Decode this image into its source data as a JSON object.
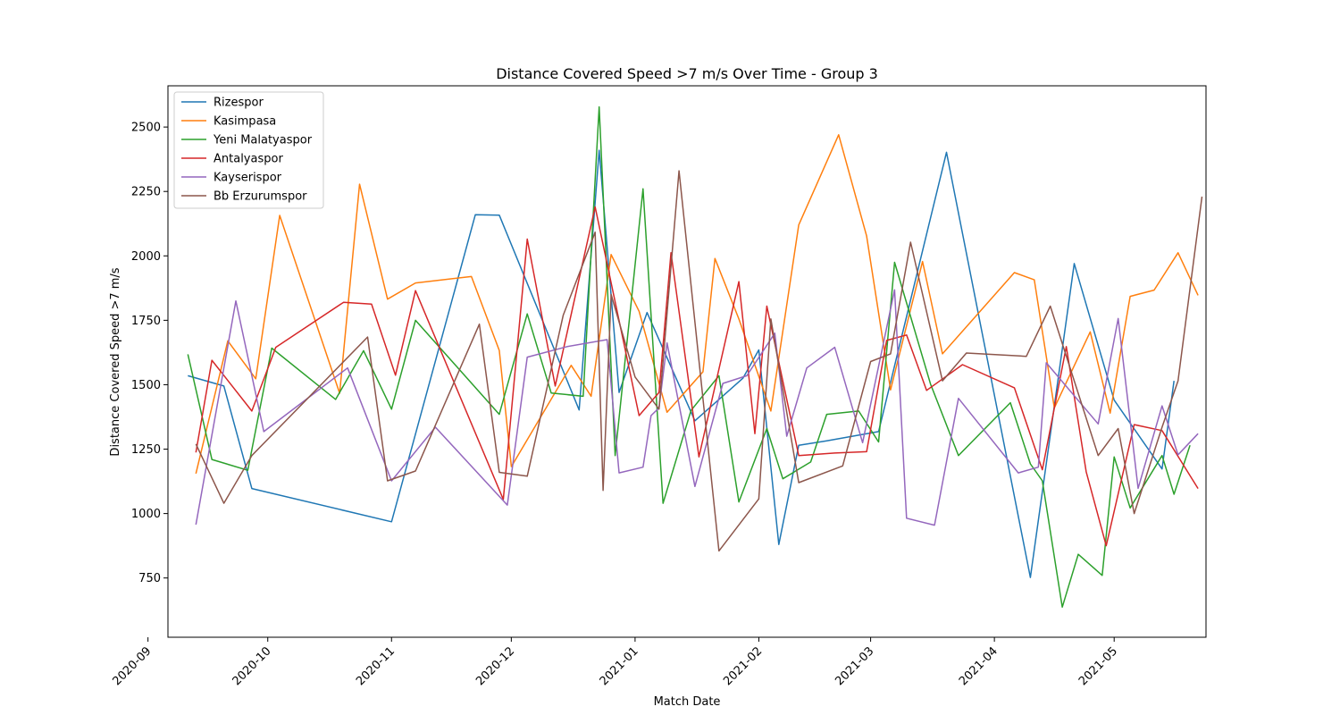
{
  "chart_data": {
    "type": "line",
    "title": "Distance Covered Speed >7 m/s Over Time - Group 3",
    "xlabel": "Match Date",
    "ylabel": "Distance Covered Speed >7 m/s",
    "xlim": [
      "2020-09-06",
      "2021-05-24"
    ],
    "ylim": [
      520,
      2660
    ],
    "x_ticks": [
      "2020-09",
      "2020-10",
      "2020-11",
      "2020-12",
      "2021-01",
      "2021-02",
      "2021-03",
      "2021-04",
      "2021-05"
    ],
    "y_ticks": [
      750,
      1000,
      1250,
      1500,
      1750,
      2000,
      2250,
      2500
    ],
    "legend_position": "top-left",
    "grid": false,
    "series": [
      {
        "name": "Rizespor",
        "color": "#1f77b4",
        "points": [
          [
            "2020-09-11",
            1535
          ],
          [
            "2020-09-20",
            1495
          ],
          [
            "2020-09-27",
            1097
          ],
          [
            "2020-11-01",
            968
          ],
          [
            "2020-11-22",
            2160
          ],
          [
            "2020-11-28",
            2158
          ],
          [
            "2020-12-18",
            1402
          ],
          [
            "2020-12-23",
            2410
          ],
          [
            "2020-12-28",
            1470
          ],
          [
            "2021-01-04",
            1780
          ],
          [
            "2021-01-16",
            1360
          ],
          [
            "2021-01-28",
            1525
          ],
          [
            "2021-02-01",
            1635
          ],
          [
            "2021-02-06",
            880
          ],
          [
            "2021-02-11",
            1265
          ],
          [
            "2021-02-18",
            1282
          ],
          [
            "2021-03-03",
            1318
          ],
          [
            "2021-03-20",
            2402
          ],
          [
            "2021-04-10",
            752
          ],
          [
            "2021-04-21",
            1970
          ],
          [
            "2021-05-01",
            1440
          ],
          [
            "2021-05-13",
            1173
          ],
          [
            "2021-05-16",
            1515
          ]
        ]
      },
      {
        "name": "Kasimpasa",
        "color": "#ff7f0e",
        "points": [
          [
            "2020-09-13",
            1155
          ],
          [
            "2020-09-21",
            1670
          ],
          [
            "2020-09-28",
            1523
          ],
          [
            "2020-10-04",
            2157
          ],
          [
            "2020-10-19",
            1467
          ],
          [
            "2020-10-24",
            2278
          ],
          [
            "2020-10-31",
            1832
          ],
          [
            "2020-11-07",
            1895
          ],
          [
            "2020-11-21",
            1920
          ],
          [
            "2020-11-28",
            1633
          ],
          [
            "2020-12-01",
            1182
          ],
          [
            "2020-12-16",
            1575
          ],
          [
            "2020-12-21",
            1455
          ],
          [
            "2020-12-26",
            2005
          ],
          [
            "2021-01-02",
            1785
          ],
          [
            "2021-01-09",
            1393
          ],
          [
            "2021-01-18",
            1550
          ],
          [
            "2021-01-21",
            1990
          ],
          [
            "2021-01-27",
            1755
          ],
          [
            "2021-02-04",
            1398
          ],
          [
            "2021-02-11",
            2120
          ],
          [
            "2021-02-21",
            2470
          ],
          [
            "2021-02-28",
            2077
          ],
          [
            "2021-03-06",
            1480
          ],
          [
            "2021-03-14",
            1978
          ],
          [
            "2021-03-19",
            1620
          ],
          [
            "2021-04-06",
            1935
          ],
          [
            "2021-04-11",
            1907
          ],
          [
            "2021-04-16",
            1410
          ],
          [
            "2021-04-25",
            1705
          ],
          [
            "2021-04-30",
            1390
          ],
          [
            "2021-05-05",
            1843
          ],
          [
            "2021-05-11",
            1867
          ],
          [
            "2021-05-17",
            2012
          ],
          [
            "2021-05-22",
            1847
          ]
        ]
      },
      {
        "name": "Yeni Malatyaspor",
        "color": "#2ca02c",
        "points": [
          [
            "2020-09-11",
            1618
          ],
          [
            "2020-09-17",
            1210
          ],
          [
            "2020-09-26",
            1168
          ],
          [
            "2020-10-02",
            1642
          ],
          [
            "2020-10-18",
            1443
          ],
          [
            "2020-10-25",
            1632
          ],
          [
            "2020-11-01",
            1405
          ],
          [
            "2020-11-07",
            1750
          ],
          [
            "2020-11-28",
            1385
          ],
          [
            "2020-12-05",
            1775
          ],
          [
            "2020-12-11",
            1468
          ],
          [
            "2020-12-19",
            1455
          ],
          [
            "2020-12-23",
            2578
          ],
          [
            "2020-12-27",
            1225
          ],
          [
            "2021-01-03",
            2260
          ],
          [
            "2021-01-08",
            1040
          ],
          [
            "2021-01-15",
            1400
          ],
          [
            "2021-01-22",
            1535
          ],
          [
            "2021-01-27",
            1045
          ],
          [
            "2021-02-03",
            1330
          ],
          [
            "2021-02-07",
            1135
          ],
          [
            "2021-02-14",
            1200
          ],
          [
            "2021-02-18",
            1385
          ],
          [
            "2021-02-26",
            1398
          ],
          [
            "2021-03-03",
            1278
          ],
          [
            "2021-03-07",
            1975
          ],
          [
            "2021-03-16",
            1503
          ],
          [
            "2021-03-23",
            1225
          ],
          [
            "2021-04-05",
            1430
          ],
          [
            "2021-04-10",
            1193
          ],
          [
            "2021-04-13",
            1127
          ],
          [
            "2021-04-18",
            637
          ],
          [
            "2021-04-22",
            842
          ],
          [
            "2021-04-28",
            760
          ],
          [
            "2021-05-01",
            1220
          ],
          [
            "2021-05-05",
            1022
          ],
          [
            "2021-05-13",
            1225
          ],
          [
            "2021-05-16",
            1075
          ],
          [
            "2021-05-20",
            1265
          ]
        ]
      },
      {
        "name": "Antalyaspor",
        "color": "#d62728",
        "points": [
          [
            "2020-09-13",
            1237
          ],
          [
            "2020-09-17",
            1595
          ],
          [
            "2020-09-27",
            1398
          ],
          [
            "2020-10-03",
            1645
          ],
          [
            "2020-10-20",
            1820
          ],
          [
            "2020-10-27",
            1813
          ],
          [
            "2020-11-02",
            1537
          ],
          [
            "2020-11-07",
            1865
          ],
          [
            "2020-11-29",
            1055
          ],
          [
            "2020-12-05",
            2065
          ],
          [
            "2020-12-12",
            1495
          ],
          [
            "2020-12-22",
            2190
          ],
          [
            "2021-01-02",
            1380
          ],
          [
            "2021-01-07",
            1470
          ],
          [
            "2021-01-10",
            2012
          ],
          [
            "2021-01-17",
            1220
          ],
          [
            "2021-01-27",
            1900
          ],
          [
            "2021-01-31",
            1310
          ],
          [
            "2021-02-03",
            1805
          ],
          [
            "2021-02-11",
            1225
          ],
          [
            "2021-02-20",
            1235
          ],
          [
            "2021-02-28",
            1240
          ],
          [
            "2021-03-05",
            1672
          ],
          [
            "2021-03-10",
            1693
          ],
          [
            "2021-03-15",
            1478
          ],
          [
            "2021-03-24",
            1578
          ],
          [
            "2021-04-06",
            1488
          ],
          [
            "2021-04-13",
            1170
          ],
          [
            "2021-04-19",
            1648
          ],
          [
            "2021-04-24",
            1162
          ],
          [
            "2021-04-29",
            875
          ],
          [
            "2021-05-06",
            1345
          ],
          [
            "2021-05-13",
            1322
          ],
          [
            "2021-05-22",
            1097
          ]
        ]
      },
      {
        "name": "Kayserispor",
        "color": "#9467bd",
        "points": [
          [
            "2020-09-13",
            957
          ],
          [
            "2020-09-23",
            1825
          ],
          [
            "2020-09-30",
            1318
          ],
          [
            "2020-10-21",
            1565
          ],
          [
            "2020-11-01",
            1127
          ],
          [
            "2020-11-12",
            1335
          ],
          [
            "2020-11-30",
            1033
          ],
          [
            "2020-12-05",
            1607
          ],
          [
            "2020-12-15",
            1648
          ],
          [
            "2020-12-25",
            1675
          ],
          [
            "2020-12-28",
            1158
          ],
          [
            "2021-01-03",
            1180
          ],
          [
            "2021-01-05",
            1380
          ],
          [
            "2021-01-07",
            1410
          ],
          [
            "2021-01-09",
            1662
          ],
          [
            "2021-01-16",
            1105
          ],
          [
            "2021-01-23",
            1505
          ],
          [
            "2021-01-29",
            1535
          ],
          [
            "2021-02-05",
            1700
          ],
          [
            "2021-02-08",
            1300
          ],
          [
            "2021-02-13",
            1565
          ],
          [
            "2021-02-20",
            1645
          ],
          [
            "2021-02-27",
            1275
          ],
          [
            "2021-03-07",
            1868
          ],
          [
            "2021-03-10",
            982
          ],
          [
            "2021-03-17",
            955
          ],
          [
            "2021-03-23",
            1447
          ],
          [
            "2021-04-07",
            1158
          ],
          [
            "2021-04-12",
            1180
          ],
          [
            "2021-04-14",
            1585
          ],
          [
            "2021-04-27",
            1348
          ],
          [
            "2021-05-02",
            1757
          ],
          [
            "2021-05-07",
            1098
          ],
          [
            "2021-05-13",
            1418
          ],
          [
            "2021-05-17",
            1228
          ],
          [
            "2021-05-22",
            1310
          ]
        ]
      },
      {
        "name": "Bb Erzurumspor",
        "color": "#8c564b",
        "points": [
          [
            "2020-09-13",
            1270
          ],
          [
            "2020-09-20",
            1040
          ],
          [
            "2020-09-27",
            1225
          ],
          [
            "2020-10-26",
            1685
          ],
          [
            "2020-10-31",
            1127
          ],
          [
            "2020-11-07",
            1165
          ],
          [
            "2020-11-23",
            1735
          ],
          [
            "2020-11-28",
            1160
          ],
          [
            "2020-12-05",
            1145
          ],
          [
            "2020-12-14",
            1770
          ],
          [
            "2020-12-22",
            2092
          ],
          [
            "2020-12-24",
            1090
          ],
          [
            "2020-12-26",
            1850
          ],
          [
            "2021-01-01",
            1530
          ],
          [
            "2021-01-07",
            1405
          ],
          [
            "2021-01-12",
            2330
          ],
          [
            "2021-01-22",
            855
          ],
          [
            "2021-02-01",
            1057
          ],
          [
            "2021-02-04",
            1755
          ],
          [
            "2021-02-11",
            1120
          ],
          [
            "2021-02-22",
            1185
          ],
          [
            "2021-03-01",
            1590
          ],
          [
            "2021-03-06",
            1620
          ],
          [
            "2021-03-11",
            2053
          ],
          [
            "2021-03-19",
            1515
          ],
          [
            "2021-03-25",
            1623
          ],
          [
            "2021-04-09",
            1610
          ],
          [
            "2021-04-15",
            1805
          ],
          [
            "2021-04-27",
            1225
          ],
          [
            "2021-05-02",
            1330
          ],
          [
            "2021-05-06",
            1000
          ],
          [
            "2021-05-13",
            1335
          ],
          [
            "2021-05-17",
            1515
          ],
          [
            "2021-05-23",
            2230
          ]
        ]
      }
    ]
  }
}
